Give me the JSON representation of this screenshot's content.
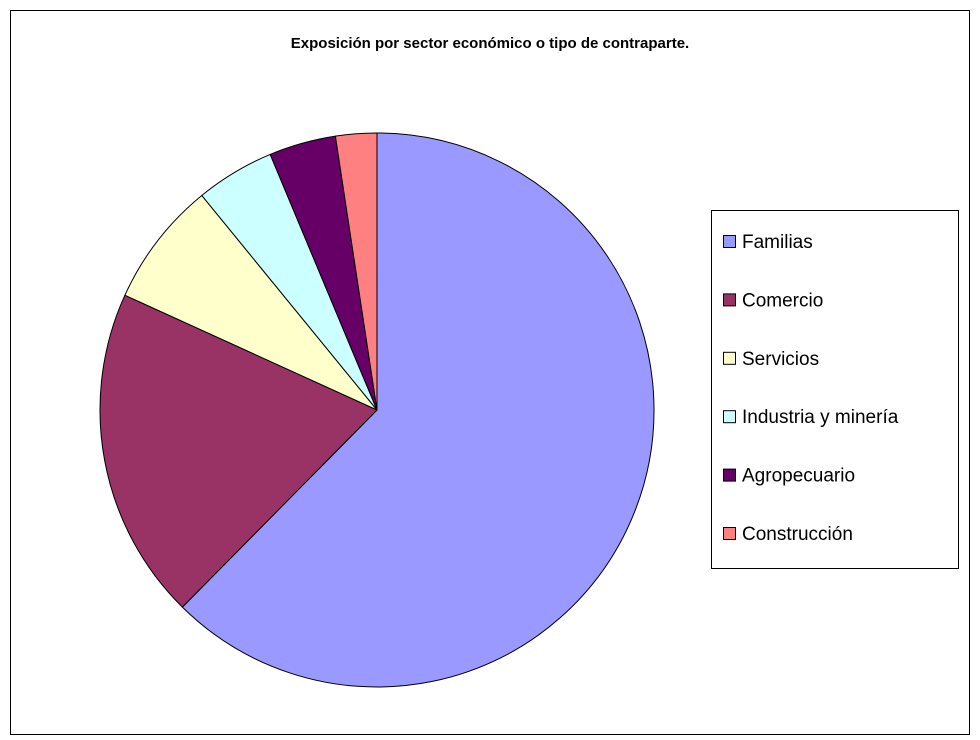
{
  "chart_data": {
    "type": "pie",
    "title": "Exposición por sector económico o tipo de contraparte.",
    "categories": [
      "Familias",
      "Comercio",
      "Servicios",
      "Industria y minería",
      "Agropecuario",
      "Construcción"
    ],
    "values": [
      62.4,
      19.4,
      7.3,
      4.6,
      3.9,
      2.4
    ],
    "colors": [
      "#9999ff",
      "#993366",
      "#ffffcc",
      "#ccffff",
      "#660066",
      "#ff8080"
    ],
    "legend": "right"
  }
}
